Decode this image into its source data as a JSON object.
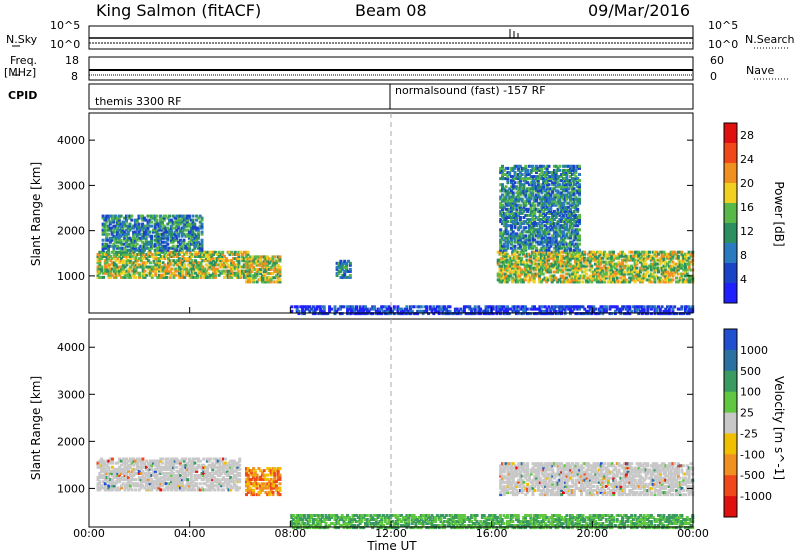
{
  "header": {
    "station": "King Salmon (fitACF)",
    "beam": "Beam 08",
    "date": "09/Mar/2016"
  },
  "side_labels": {
    "nsky": "N.Sky",
    "nsearch": "N.Search",
    "freq": "Freq.",
    "freq_unit": "[MHz]",
    "nave": "Nave",
    "cpid": "CPID",
    "nsky_top": "10^5",
    "nsky_bot": "10^0",
    "freq_top": "18",
    "freq_bot": "8",
    "nave_top": "60",
    "nave_bot": "0"
  },
  "cpid_modes": [
    "themis 3300 RF",
    "normalsound (fast) -157 RF"
  ],
  "x_axis": {
    "label": "Time UT",
    "ticks": [
      "00:00",
      "04:00",
      "08:00",
      "12:00",
      "16:00",
      "20:00",
      "00:00"
    ]
  },
  "chart_data": [
    {
      "type": "heatmap",
      "name": "power",
      "ylabel": "Slant Range [km]",
      "ylim": [
        180,
        4600
      ],
      "y_ticks": [
        1000,
        2000,
        3000,
        4000
      ],
      "xlim_hours": [
        0,
        24
      ],
      "colorbar": {
        "label": "Power [dB]",
        "ticks": [
          4,
          8,
          12,
          16,
          20,
          24,
          28
        ],
        "range": [
          0,
          30
        ],
        "colors": [
          "#2020ff",
          "#1a44c8",
          "#2a7ac0",
          "#2a9060",
          "#58b848",
          "#f0d020",
          "#f09020",
          "#f04818",
          "#e01010"
        ]
      },
      "echo_regions": [
        {
          "t": [
            0.3,
            6.4
          ],
          "range_km": [
            1000,
            1600
          ],
          "level": "high"
        },
        {
          "t": [
            0.5,
            4.5
          ],
          "range_km": [
            1600,
            2400
          ],
          "level": "medium"
        },
        {
          "t": [
            6.2,
            7.6
          ],
          "range_km": [
            900,
            1500
          ],
          "level": "high"
        },
        {
          "t": [
            9.8,
            10.4
          ],
          "range_km": [
            1000,
            1400
          ],
          "level": "medium"
        },
        {
          "t": [
            16.2,
            24.0
          ],
          "range_km": [
            900,
            1600
          ],
          "level": "high"
        },
        {
          "t": [
            16.3,
            19.5
          ],
          "range_km": [
            1600,
            3500
          ],
          "level": "medium"
        },
        {
          "t": [
            8.0,
            24.0
          ],
          "range_km": [
            200,
            400
          ],
          "level": "low"
        }
      ]
    },
    {
      "type": "heatmap",
      "name": "velocity",
      "ylabel": "Slant Range [km]",
      "ylim": [
        180,
        4600
      ],
      "y_ticks": [
        1000,
        2000,
        3000,
        4000
      ],
      "xlim_hours": [
        0,
        24
      ],
      "colorbar": {
        "label": "Velocity [m s^-1]",
        "ticks": [
          1000,
          500,
          100,
          25,
          -25,
          -100,
          -500,
          -1000
        ],
        "colors": [
          "#2050d0",
          "#2a70a0",
          "#3a9a60",
          "#60c840",
          "#c8c8c8",
          "#f0c000",
          "#f09020",
          "#f04818",
          "#e01010"
        ]
      },
      "echo_regions": [
        {
          "t": [
            0.3,
            6.0
          ],
          "range_km": [
            1000,
            1700
          ],
          "level": "ground"
        },
        {
          "t": [
            6.2,
            7.6
          ],
          "range_km": [
            900,
            1500
          ],
          "level": "negative"
        },
        {
          "t": [
            16.3,
            24.0
          ],
          "range_km": [
            900,
            1600
          ],
          "level": "ground"
        },
        {
          "t": [
            8.0,
            24.0
          ],
          "range_km": [
            200,
            500
          ],
          "level": "positive"
        }
      ]
    }
  ]
}
